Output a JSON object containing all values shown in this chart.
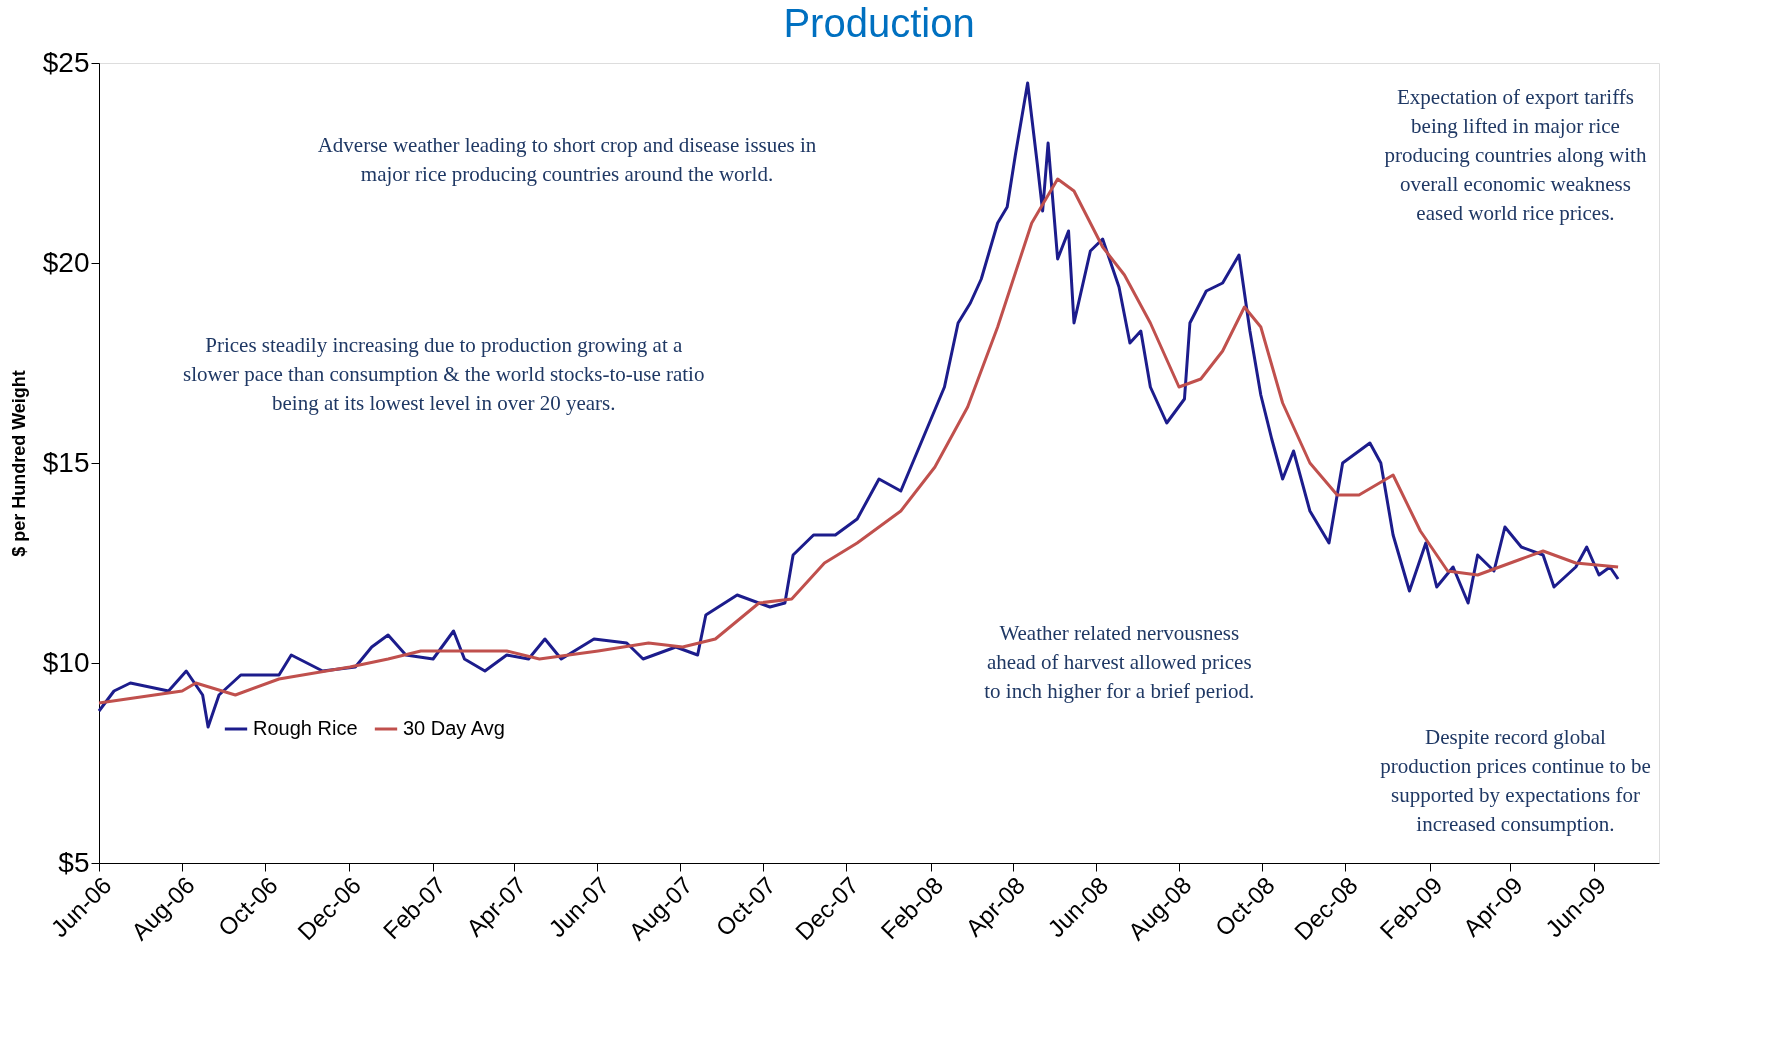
{
  "chart_data": {
    "type": "line",
    "title": "Production",
    "ylabel": "$ per Hundred Weight",
    "xlim": [
      "2006-06-01",
      "2009-07-19"
    ],
    "xticks": [
      {
        "value": "2006-06-01",
        "label": "Jun-06"
      },
      {
        "value": "2006-08-01",
        "label": "Aug-06"
      },
      {
        "value": "2006-10-01",
        "label": "Oct-06"
      },
      {
        "value": "2006-12-01",
        "label": "Dec-06"
      },
      {
        "value": "2007-02-01",
        "label": "Feb-07"
      },
      {
        "value": "2007-04-01",
        "label": "Apr-07"
      },
      {
        "value": "2007-06-01",
        "label": "Jun-07"
      },
      {
        "value": "2007-08-01",
        "label": "Aug-07"
      },
      {
        "value": "2007-10-01",
        "label": "Oct-07"
      },
      {
        "value": "2007-12-01",
        "label": "Dec-07"
      },
      {
        "value": "2008-02-01",
        "label": "Feb-08"
      },
      {
        "value": "2008-04-01",
        "label": "Apr-08"
      },
      {
        "value": "2008-06-01",
        "label": "Jun-08"
      },
      {
        "value": "2008-08-01",
        "label": "Aug-08"
      },
      {
        "value": "2008-10-01",
        "label": "Oct-08"
      },
      {
        "value": "2008-12-01",
        "label": "Dec-08"
      },
      {
        "value": "2009-02-01",
        "label": "Feb-09"
      },
      {
        "value": "2009-04-01",
        "label": "Apr-09"
      },
      {
        "value": "2009-06-01",
        "label": "Jun-09"
      }
    ],
    "ylim": [
      5,
      25
    ],
    "yticks": [
      {
        "value": 5,
        "label": "$5"
      },
      {
        "value": 10,
        "label": "$10"
      },
      {
        "value": 15,
        "label": "$15"
      },
      {
        "value": 20,
        "label": "$20"
      },
      {
        "value": 25,
        "label": "$25"
      }
    ],
    "grid": false,
    "legend": "bottom left",
    "line_style": "solid",
    "marker": "none",
    "series": [
      {
        "name": "Rough Rice",
        "color": "#1c1c8c",
        "x": [
          "2006-06-01",
          "2006-06-12",
          "2006-06-24",
          "2006-07-22",
          "2006-08-04",
          "2006-08-16",
          "2006-08-20",
          "2006-08-28",
          "2006-09-13",
          "2006-10-11",
          "2006-10-20",
          "2006-11-12",
          "2006-12-06",
          "2006-12-18",
          "2006-12-30",
          "2007-01-12",
          "2007-02-01",
          "2007-02-16",
          "2007-02-24",
          "2007-03-11",
          "2007-03-27",
          "2007-04-12",
          "2007-04-24",
          "2007-05-06",
          "2007-05-30",
          "2007-06-23",
          "2007-07-05",
          "2007-07-29",
          "2007-08-14",
          "2007-08-20",
          "2007-09-12",
          "2007-10-06",
          "2007-10-17",
          "2007-10-23",
          "2007-11-07",
          "2007-11-23",
          "2007-12-09",
          "2007-12-25",
          "2008-01-10",
          "2008-01-26",
          "2008-02-11",
          "2008-02-21",
          "2008-03-01",
          "2008-03-09",
          "2008-03-21",
          "2008-03-28",
          "2008-04-03",
          "2008-04-12",
          "2008-04-19",
          "2008-04-23",
          "2008-04-27",
          "2008-05-04",
          "2008-05-12",
          "2008-05-16",
          "2008-05-28",
          "2008-06-06",
          "2008-06-18",
          "2008-06-26",
          "2008-07-04",
          "2008-07-11",
          "2008-07-23",
          "2008-08-05",
          "2008-08-09",
          "2008-08-21",
          "2008-09-02",
          "2008-09-14",
          "2008-09-22",
          "2008-09-30",
          "2008-10-08",
          "2008-10-16",
          "2008-10-24",
          "2008-11-05",
          "2008-11-19",
          "2008-11-29",
          "2008-12-19",
          "2008-12-27",
          "2009-01-05",
          "2009-01-17",
          "2009-01-29",
          "2009-02-06",
          "2009-02-18",
          "2009-03-01",
          "2009-03-08",
          "2009-03-20",
          "2009-03-28",
          "2009-04-09",
          "2009-04-25",
          "2009-05-03",
          "2009-05-19",
          "2009-05-27",
          "2009-06-05",
          "2009-06-13",
          "2009-06-19"
        ],
        "values": [
          8.8,
          9.3,
          9.5,
          9.3,
          9.8,
          9.2,
          8.4,
          9.2,
          9.7,
          9.7,
          10.2,
          9.8,
          9.9,
          10.4,
          10.7,
          10.2,
          10.1,
          10.8,
          10.1,
          9.8,
          10.2,
          10.1,
          10.6,
          10.1,
          10.6,
          10.5,
          10.1,
          10.4,
          10.2,
          11.2,
          11.7,
          11.4,
          11.5,
          12.7,
          13.2,
          13.2,
          13.6,
          14.6,
          14.3,
          15.6,
          16.9,
          18.5,
          19.0,
          19.6,
          21.0,
          21.4,
          22.7,
          24.5,
          22.5,
          21.3,
          23.0,
          20.1,
          20.8,
          18.5,
          20.3,
          20.6,
          19.4,
          18.0,
          18.3,
          16.9,
          16.0,
          16.6,
          18.5,
          19.3,
          19.5,
          20.2,
          18.3,
          16.7,
          15.6,
          14.6,
          15.3,
          13.8,
          13.0,
          15.0,
          15.5,
          15.0,
          13.2,
          11.8,
          13.0,
          11.9,
          12.4,
          11.5,
          12.7,
          12.3,
          13.4,
          12.9,
          12.7,
          11.9,
          12.4,
          12.9,
          12.2,
          12.4,
          12.1
        ]
      },
      {
        "name": "30 Day Avg",
        "color": "#c0504d",
        "x": [
          "2006-06-01",
          "2006-08-01",
          "2006-08-11",
          "2006-09-09",
          "2006-10-11",
          "2006-12-02",
          "2006-12-30",
          "2007-01-23",
          "2007-02-24",
          "2007-03-27",
          "2007-04-20",
          "2007-06-02",
          "2007-07-09",
          "2007-08-03",
          "2007-08-27",
          "2007-09-28",
          "2007-10-22",
          "2007-11-15",
          "2007-12-09",
          "2008-01-10",
          "2008-02-04",
          "2008-02-28",
          "2008-03-21",
          "2008-04-15",
          "2008-05-04",
          "2008-05-16",
          "2008-06-06",
          "2008-06-22",
          "2008-07-11",
          "2008-08-01",
          "2008-08-17",
          "2008-09-02",
          "2008-09-18",
          "2008-09-30",
          "2008-10-16",
          "2008-11-05",
          "2008-11-25",
          "2008-12-11",
          "2009-01-05",
          "2009-01-25",
          "2009-02-14",
          "2009-03-08",
          "2009-04-09",
          "2009-04-25",
          "2009-05-19",
          "2009-06-19"
        ],
        "values": [
          9.0,
          9.3,
          9.5,
          9.2,
          9.6,
          9.9,
          10.1,
          10.3,
          10.3,
          10.3,
          10.1,
          10.3,
          10.5,
          10.4,
          10.6,
          11.5,
          11.6,
          12.5,
          13.0,
          13.8,
          14.9,
          16.4,
          18.4,
          21.0,
          22.1,
          21.8,
          20.4,
          19.7,
          18.5,
          16.9,
          17.1,
          17.8,
          18.9,
          18.4,
          16.5,
          15.0,
          14.2,
          14.2,
          14.7,
          13.3,
          12.3,
          12.2,
          12.6,
          12.8,
          12.5,
          12.4
        ]
      }
    ],
    "annotations": [
      "Adverse weather leading to short crop and disease issues in\nmajor rice producing countries around the world.",
      "Prices steadily increasing due to production growing at a\nslower pace than consumption & the world stocks-to-use ratio\nbeing at its lowest level in over 20 years.",
      "Expectation of export tariffs\nbeing lifted in major rice\nproducing countries  along with\noverall economic weakness\neased world rice prices.",
      "Weather related nervousness\nahead of harvest allowed prices\nto inch higher for a brief period.",
      "Despite record global\nproduction prices continue to be\nsupported by expectations for\nincreased consumption."
    ]
  }
}
